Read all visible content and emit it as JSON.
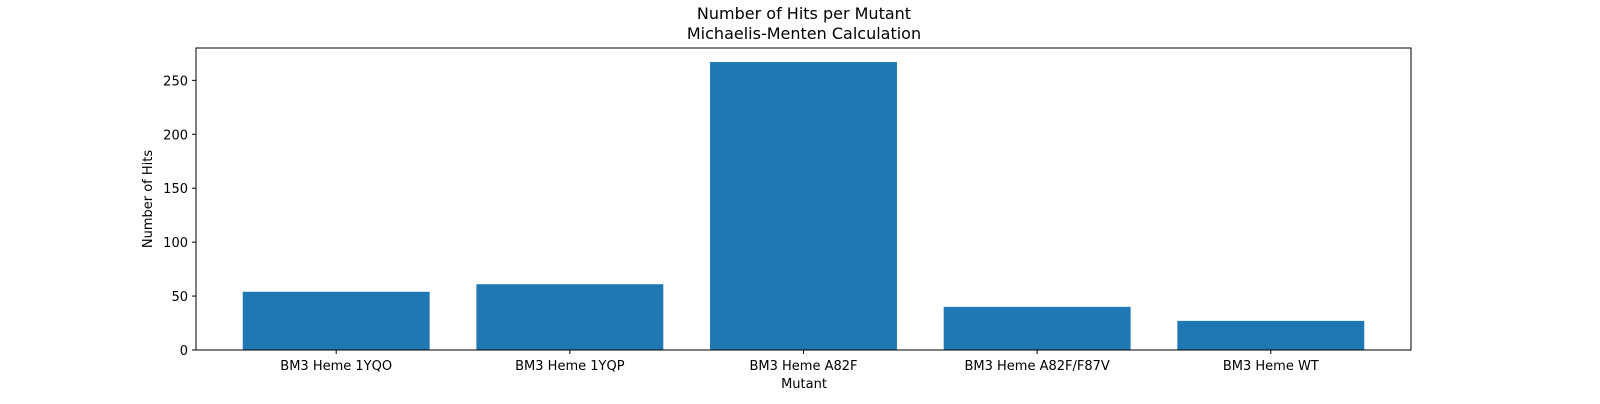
{
  "chart_data": {
    "type": "bar",
    "title": "Number of Hits per Mutant",
    "subtitle": "Michaelis-Menten Calculation",
    "xlabel": "Mutant",
    "ylabel": "Number of Hits",
    "categories": [
      "BM3 Heme 1YQO",
      "BM3 Heme 1YQP",
      "BM3 Heme A82F",
      "BM3 Heme A82F/F87V",
      "BM3 Heme WT"
    ],
    "values": [
      54,
      61,
      267,
      40,
      27
    ],
    "ylim": [
      0,
      280
    ],
    "yticks": [
      0,
      50,
      100,
      150,
      200,
      250
    ],
    "bar_color": "#1f77b4",
    "grid": false,
    "legend": "none"
  }
}
